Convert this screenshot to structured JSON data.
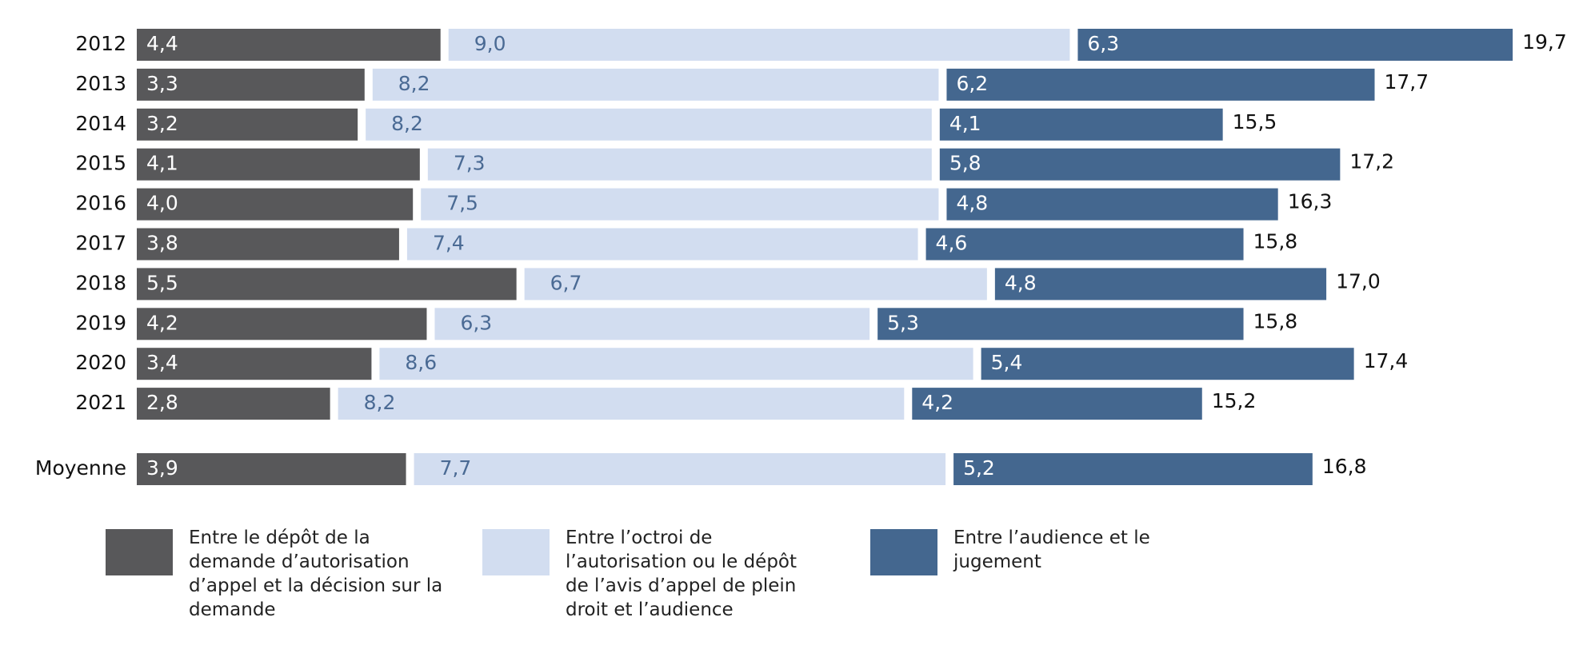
{
  "chart_data": {
    "type": "stacked-bar-horizontal",
    "categories": [
      "2012",
      "2013",
      "2014",
      "2015",
      "2016",
      "2017",
      "2018",
      "2019",
      "2020",
      "2021",
      "Moyenne"
    ],
    "series": [
      {
        "name": "Entre le dépôt de la demande d’autorisation d’appel et la décision sur la demande",
        "color": "#58585a",
        "values": [
          4.4,
          3.3,
          3.2,
          4.1,
          4.0,
          3.8,
          5.5,
          4.2,
          3.4,
          2.8,
          3.9
        ],
        "value_labels": [
          "4,4",
          "3,3",
          "3,2",
          "4,1",
          "4,0",
          "3,8",
          "5,5",
          "4,2",
          "3,4",
          "2,8",
          "3,9"
        ]
      },
      {
        "name": "Entre l’octroi de l’autorisation ou le dépôt de l’avis d’appel de plein droit et l’audience",
        "color": "#d2ddf0",
        "values": [
          9.0,
          8.2,
          8.2,
          7.3,
          7.5,
          7.4,
          6.7,
          6.3,
          8.6,
          8.2,
          7.7
        ],
        "value_labels": [
          "9,0",
          "8,2",
          "8,2",
          "7,3",
          "7,5",
          "7,4",
          "6,7",
          "6,3",
          "8,6",
          "8,2",
          "7,7"
        ]
      },
      {
        "name": "Entre l’audience et le jugement",
        "color": "#44678f",
        "values": [
          6.3,
          6.2,
          4.1,
          5.8,
          4.8,
          4.6,
          4.8,
          5.3,
          5.4,
          4.2,
          5.2
        ],
        "value_labels": [
          "6,3",
          "6,2",
          "4,1",
          "5,8",
          "4,8",
          "4,6",
          "4,8",
          "5,3",
          "5,4",
          "4,2",
          "5,2"
        ]
      }
    ],
    "totals": [
      19.7,
      17.7,
      15.5,
      17.2,
      16.3,
      15.8,
      17.0,
      15.8,
      17.4,
      15.2,
      16.8
    ],
    "total_labels": [
      "19,7",
      "17,7",
      "15,5",
      "17,2",
      "16,3",
      "15,8",
      "17,0",
      "15,8",
      "17,4",
      "15,2",
      "16,8"
    ]
  }
}
